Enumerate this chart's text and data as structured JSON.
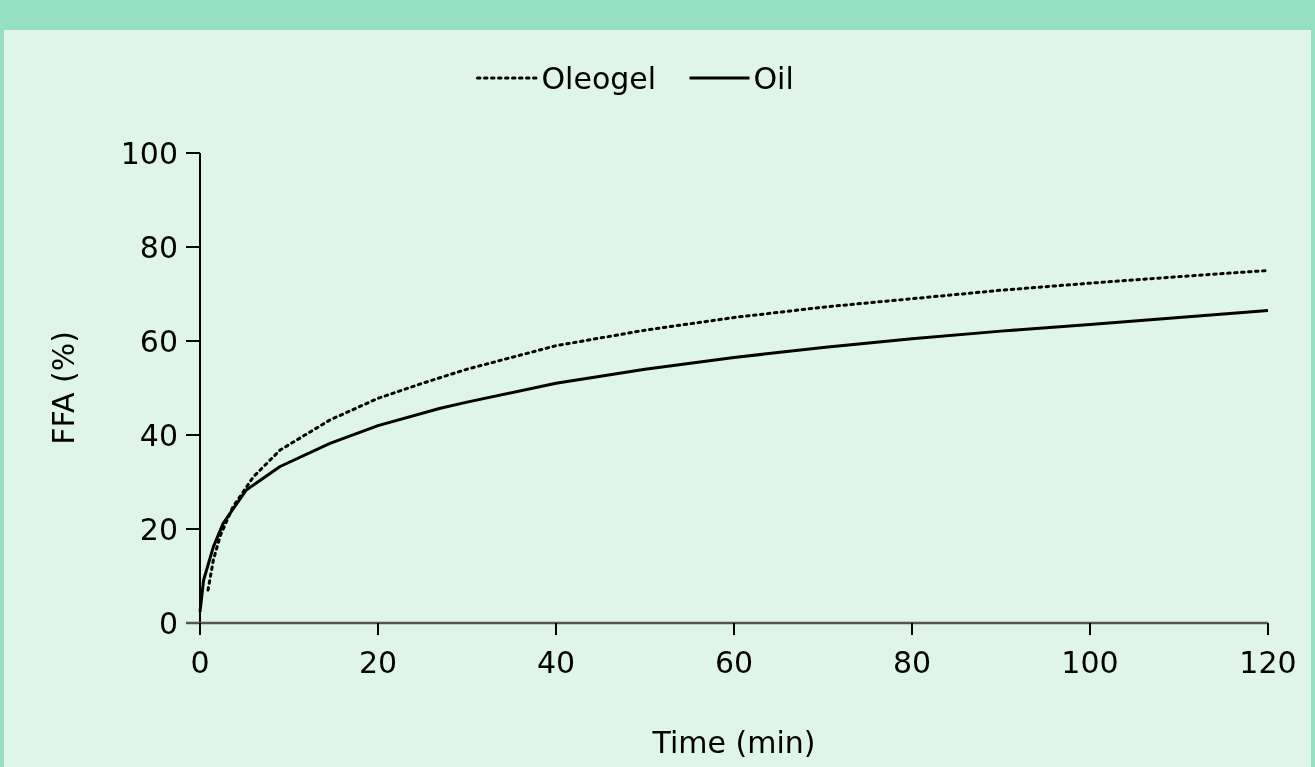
{
  "chart_data": {
    "type": "line",
    "xlabel": "Time (min)",
    "ylabel": "FFA (%)",
    "xlim": [
      0,
      120
    ],
    "ylim": [
      0,
      100
    ],
    "xticks": [
      0,
      20,
      40,
      60,
      80,
      100,
      120
    ],
    "yticks": [
      0,
      20,
      40,
      60,
      80,
      100
    ],
    "legend": "top",
    "grid": false,
    "series": [
      {
        "name": "Oleogel",
        "color": "#000000",
        "line_style": "dotted",
        "x": [
          0.9,
          1.5,
          2.3,
          3.7,
          6,
          9,
          14.6,
          20,
          25,
          30,
          40,
          50,
          60,
          70,
          80,
          90,
          100,
          110,
          120
        ],
        "values": [
          7,
          13.4,
          18.7,
          24.7,
          31.1,
          36.8,
          43.2,
          47.8,
          51,
          54,
          59,
          62.3,
          65,
          67.2,
          69,
          70.8,
          72.3,
          73.7,
          75
        ]
      },
      {
        "name": "Oil",
        "color": "#000000",
        "line_style": "solid",
        "x": [
          0,
          0.4,
          1.5,
          2.6,
          5.2,
          9,
          14.6,
          20,
          27,
          30,
          40,
          50,
          60,
          70,
          80,
          90,
          100,
          110,
          120
        ],
        "values": [
          2.4,
          9.1,
          16.2,
          21.2,
          28.3,
          33.3,
          38.2,
          42,
          45.7,
          47,
          51,
          54,
          56.5,
          58.6,
          60.5,
          62.1,
          63.5,
          65,
          66.5
        ]
      }
    ]
  }
}
